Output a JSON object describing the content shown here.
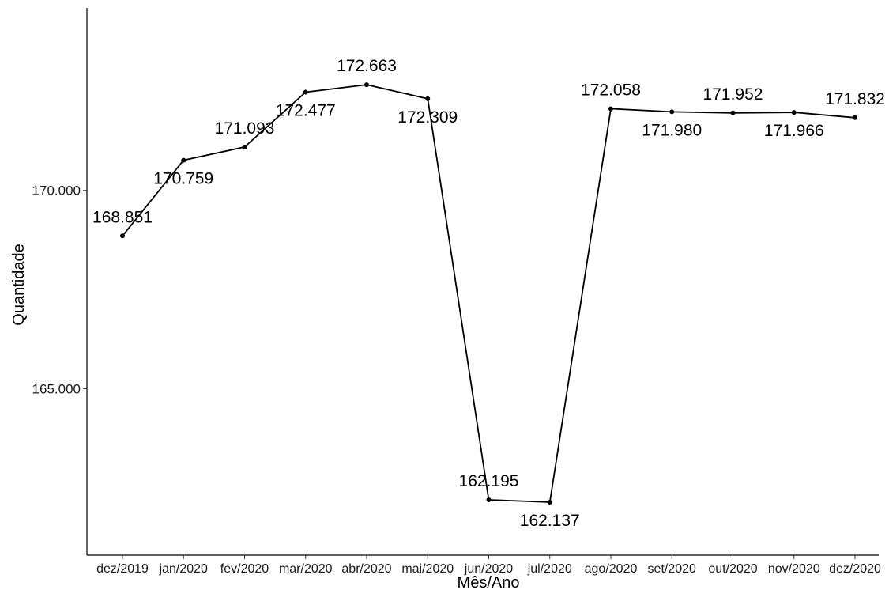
{
  "chart_data": {
    "type": "line",
    "title": "",
    "xlabel": "Mês/Ano",
    "ylabel": "Quantidade",
    "categories": [
      "dez/2019",
      "jan/2020",
      "fev/2020",
      "mar/2020",
      "abr/2020",
      "mai/2020",
      "jun/2020",
      "jul/2020",
      "ago/2020",
      "set/2020",
      "out/2020",
      "nov/2020",
      "dez/2020"
    ],
    "values": [
      168851,
      170759,
      171093,
      172477,
      172663,
      172309,
      162195,
      162137,
      172058,
      171980,
      171952,
      171966,
      171832
    ],
    "data_labels": [
      "168.851",
      "170.759",
      "171.093",
      "172.477",
      "172.663",
      "172.309",
      "162.195",
      "162.137",
      "172.058",
      "171.980",
      "171.952",
      "171.966",
      "171.832"
    ],
    "y_ticks": [
      165000,
      170000
    ],
    "y_tick_labels": [
      "165.000",
      "170.000"
    ],
    "ylim": [
      160800,
      174600
    ],
    "grid": false,
    "line_color": "#000000",
    "point_color": "#000000"
  }
}
